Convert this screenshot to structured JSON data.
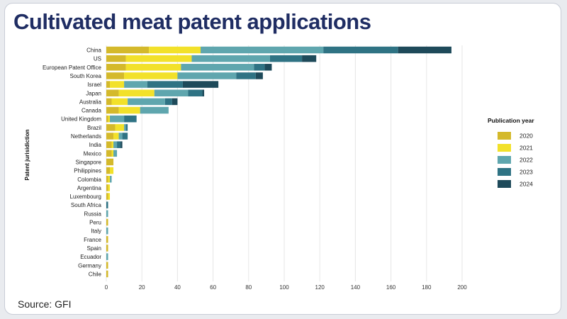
{
  "header": {
    "title": "Cultivated meat patent applications"
  },
  "footer": {
    "source": "Source: GFI"
  },
  "chart_data": {
    "type": "bar",
    "orientation": "horizontal",
    "stacked": true,
    "title": "Cultivated meat patent applications",
    "ylabel": "Patent jurisidiction",
    "xlabel": "",
    "xlim": [
      0,
      200
    ],
    "xticks": [
      0,
      20,
      40,
      60,
      80,
      100,
      120,
      140,
      160,
      180,
      200
    ],
    "grid": true,
    "legend": {
      "title": "Publication year",
      "position": "right"
    },
    "categories": [
      "China",
      "US",
      "European Patent Office",
      "South Korea",
      "Israel",
      "Japan",
      "Australia",
      "Canada",
      "United Kingdom",
      "Brazil",
      "Netherlands",
      "India",
      "Mexico",
      "Singapore",
      "Philippines",
      "Colombia",
      "Argentina",
      "Luxembourg",
      "South Africa",
      "Russia",
      "Peru",
      "Italy",
      "France",
      "Spain",
      "Ecuador",
      "Germany",
      "Chile"
    ],
    "series": [
      {
        "name": "2020",
        "color": "#d4b92b",
        "values": [
          24,
          11,
          11,
          10,
          2,
          7,
          3,
          7,
          1,
          5,
          4,
          3,
          3,
          4,
          2,
          1,
          1,
          1,
          0,
          0,
          1,
          0,
          1,
          1,
          0,
          1,
          1
        ]
      },
      {
        "name": "2021",
        "color": "#f2e12a",
        "values": [
          29,
          37,
          31,
          30,
          8,
          20,
          9,
          12,
          1,
          5,
          3,
          1,
          1,
          0,
          2,
          1,
          1,
          1,
          0,
          0,
          0,
          0,
          0,
          0,
          0,
          0,
          0
        ]
      },
      {
        "name": "2022",
        "color": "#5fa6ae",
        "values": [
          69,
          44,
          41,
          33,
          13,
          19,
          21,
          16,
          8,
          1,
          2,
          2,
          2,
          0,
          0,
          1,
          0,
          0,
          0,
          1,
          0,
          1,
          0,
          0,
          1,
          0,
          0
        ]
      },
      {
        "name": "2023",
        "color": "#2f7384",
        "values": [
          42,
          18,
          6,
          11,
          20,
          8,
          4,
          0,
          7,
          1,
          3,
          2,
          0,
          0,
          0,
          0,
          0,
          0,
          1,
          0,
          0,
          0,
          0,
          0,
          0,
          0,
          0
        ]
      },
      {
        "name": "2024",
        "color": "#1e4a5a",
        "values": [
          30,
          8,
          4,
          4,
          20,
          1,
          3,
          0,
          0,
          0,
          0,
          1,
          0,
          0,
          0,
          0,
          0,
          0,
          0,
          0,
          0,
          0,
          0,
          0,
          0,
          0,
          0
        ]
      }
    ]
  }
}
